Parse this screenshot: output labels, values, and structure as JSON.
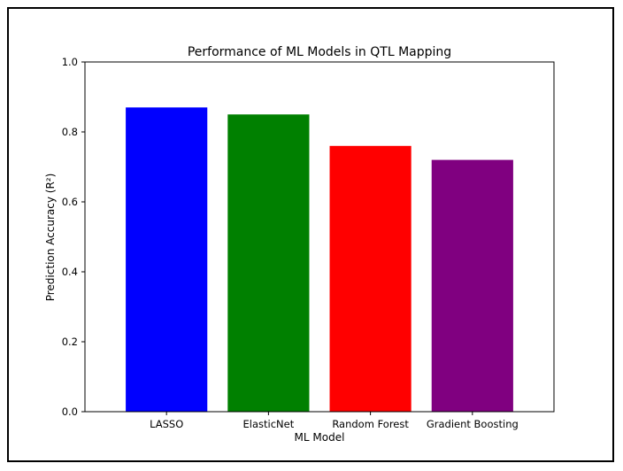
{
  "chart_data": {
    "type": "bar",
    "title": "Performance of ML Models in QTL Mapping",
    "xlabel": "ML Model",
    "ylabel": "Prediction Accuracy (R²)",
    "categories": [
      "LASSO",
      "ElasticNet",
      "Random Forest",
      "Gradient Boosting"
    ],
    "values": [
      0.87,
      0.85,
      0.76,
      0.72
    ],
    "colors": [
      "#0000ff",
      "#008000",
      "#ff0000",
      "#800080"
    ],
    "ylim": [
      0,
      1.0
    ],
    "yticks": [
      0.0,
      0.2,
      0.4,
      0.6,
      0.8,
      1.0
    ],
    "ytick_labels": [
      "0.0",
      "0.2",
      "0.4",
      "0.6",
      "0.8",
      "1.0"
    ],
    "grid": false,
    "legend": false
  }
}
